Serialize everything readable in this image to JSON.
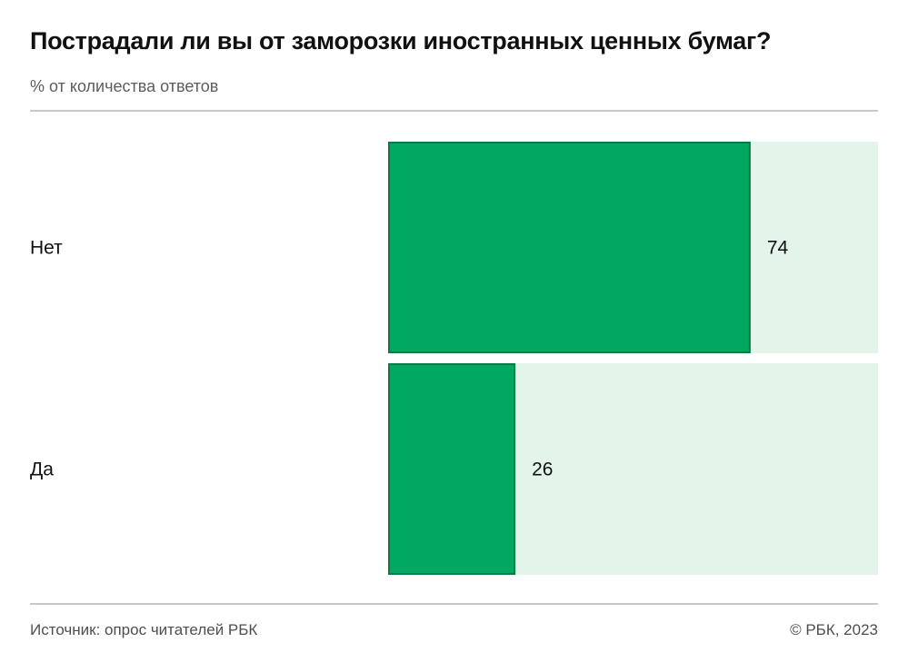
{
  "chart_data": {
    "type": "bar",
    "orientation": "horizontal",
    "title": "Пострадали ли вы от заморозки иностранных ценных бумаг?",
    "subtitle": "% от количества ответов",
    "categories": [
      "Нет",
      "Да"
    ],
    "values": [
      74,
      26
    ],
    "value_labels": [
      "74",
      "26"
    ],
    "xlim": [
      0,
      100
    ],
    "grid": false,
    "legend": "none",
    "colors": {
      "bar": "#00a862",
      "bar_border": "#0b7a45",
      "track": "#e3f4ea"
    }
  },
  "footer": {
    "source": "Источник: опрос читателей РБК",
    "copyright": "© РБК, 2023"
  }
}
